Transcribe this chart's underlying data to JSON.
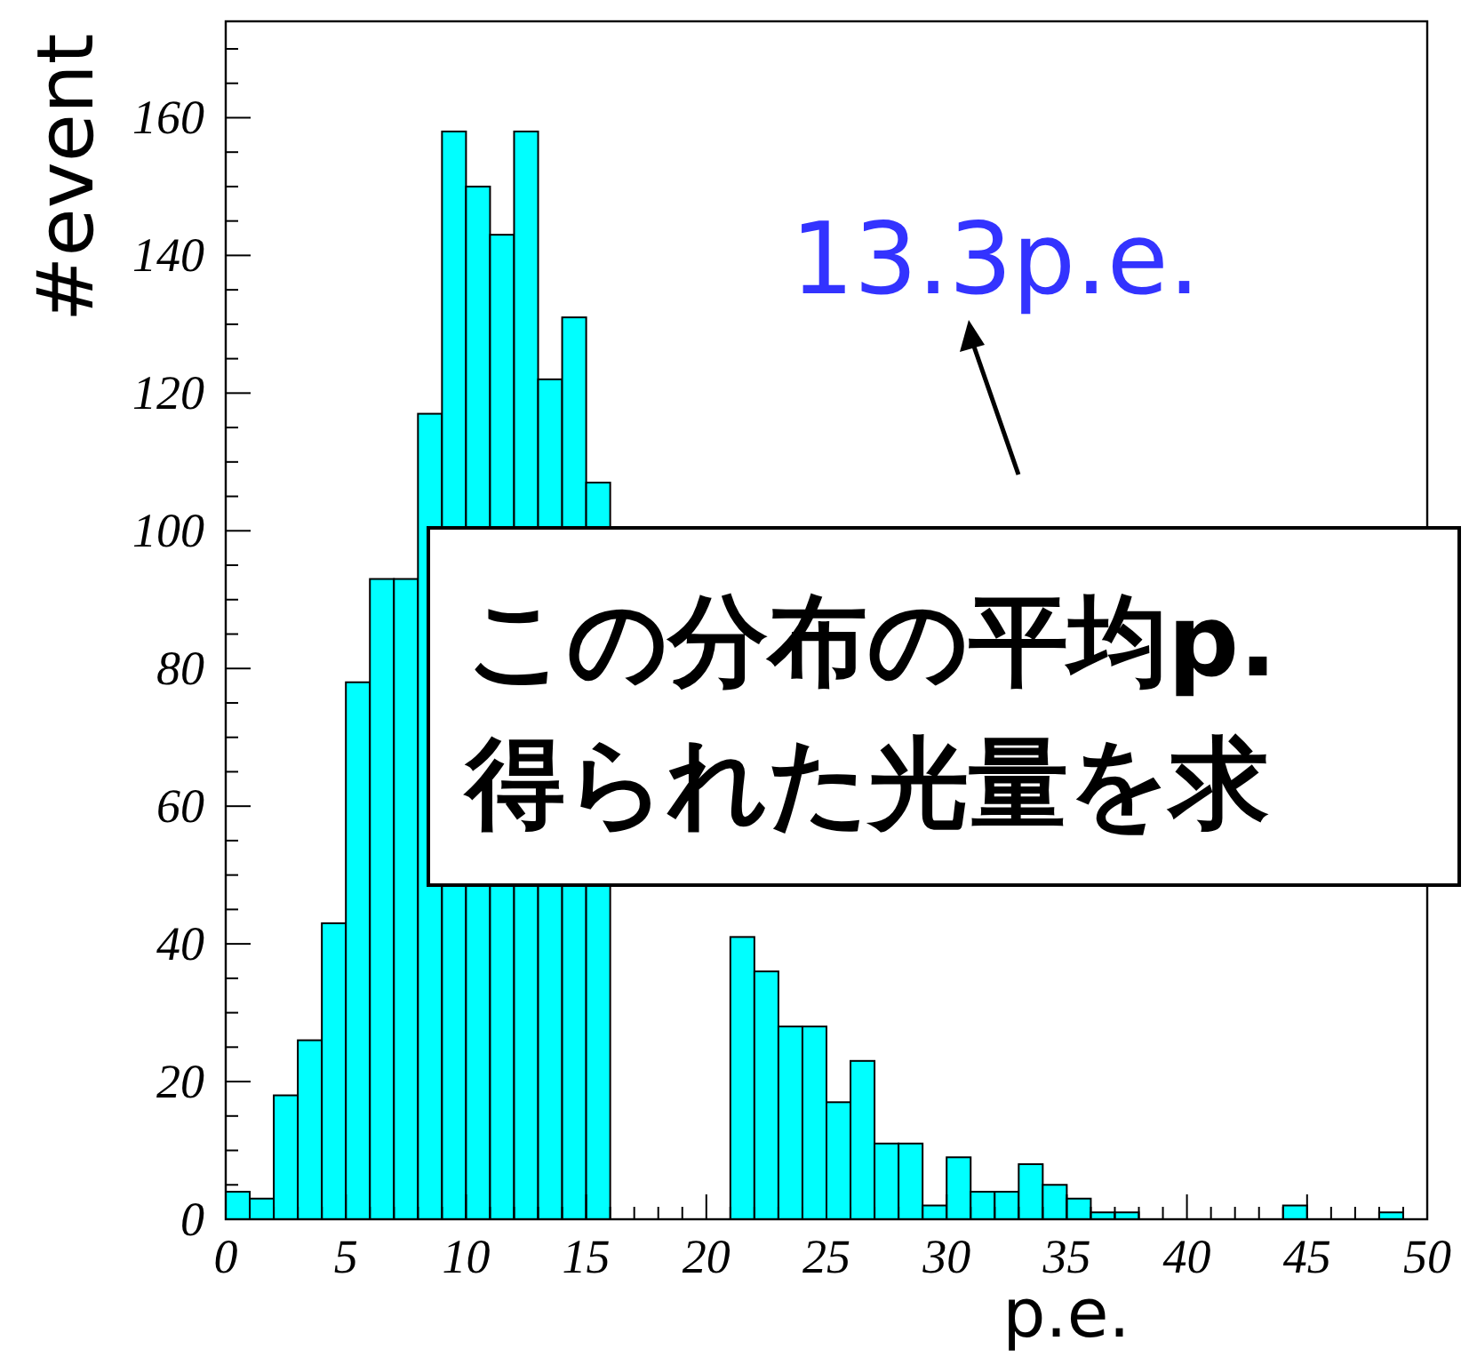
{
  "chart_data": {
    "type": "histogram",
    "xlabel": "p.e.",
    "ylabel": "#event",
    "bins": [
      0,
      1,
      2,
      3,
      4,
      5,
      6,
      7,
      8,
      9,
      10,
      11,
      12,
      13,
      14,
      15,
      16,
      17,
      18,
      19,
      20,
      21,
      22,
      23,
      24,
      25,
      26,
      27,
      28,
      29,
      30,
      31,
      32,
      33,
      34,
      35,
      36,
      37,
      38,
      39,
      40,
      41,
      42,
      43,
      44,
      45,
      46,
      47,
      48,
      49,
      50
    ],
    "values": [
      4,
      3,
      18,
      26,
      43,
      78,
      93,
      93,
      117,
      158,
      150,
      143,
      158,
      122,
      131,
      107,
      null,
      null,
      null,
      null,
      null,
      41,
      36,
      28,
      28,
      17,
      23,
      11,
      11,
      2,
      9,
      4,
      4,
      8,
      5,
      3,
      1,
      1,
      0,
      0,
      0,
      0,
      0,
      0,
      2,
      0,
      0,
      0,
      1,
      0
    ],
    "color": "#00ffff",
    "xlim": [
      0,
      50
    ],
    "ylim": [
      0,
      174
    ],
    "xticks": [
      0,
      5,
      10,
      15,
      20,
      25,
      30,
      35,
      40,
      45,
      50
    ],
    "yticks": [
      0,
      20,
      40,
      60,
      80,
      100,
      120,
      140,
      160
    ],
    "grid": false,
    "annotations": [
      "13.3p.e.",
      "この分布の平均p.",
      "得られた光量を求"
    ]
  }
}
